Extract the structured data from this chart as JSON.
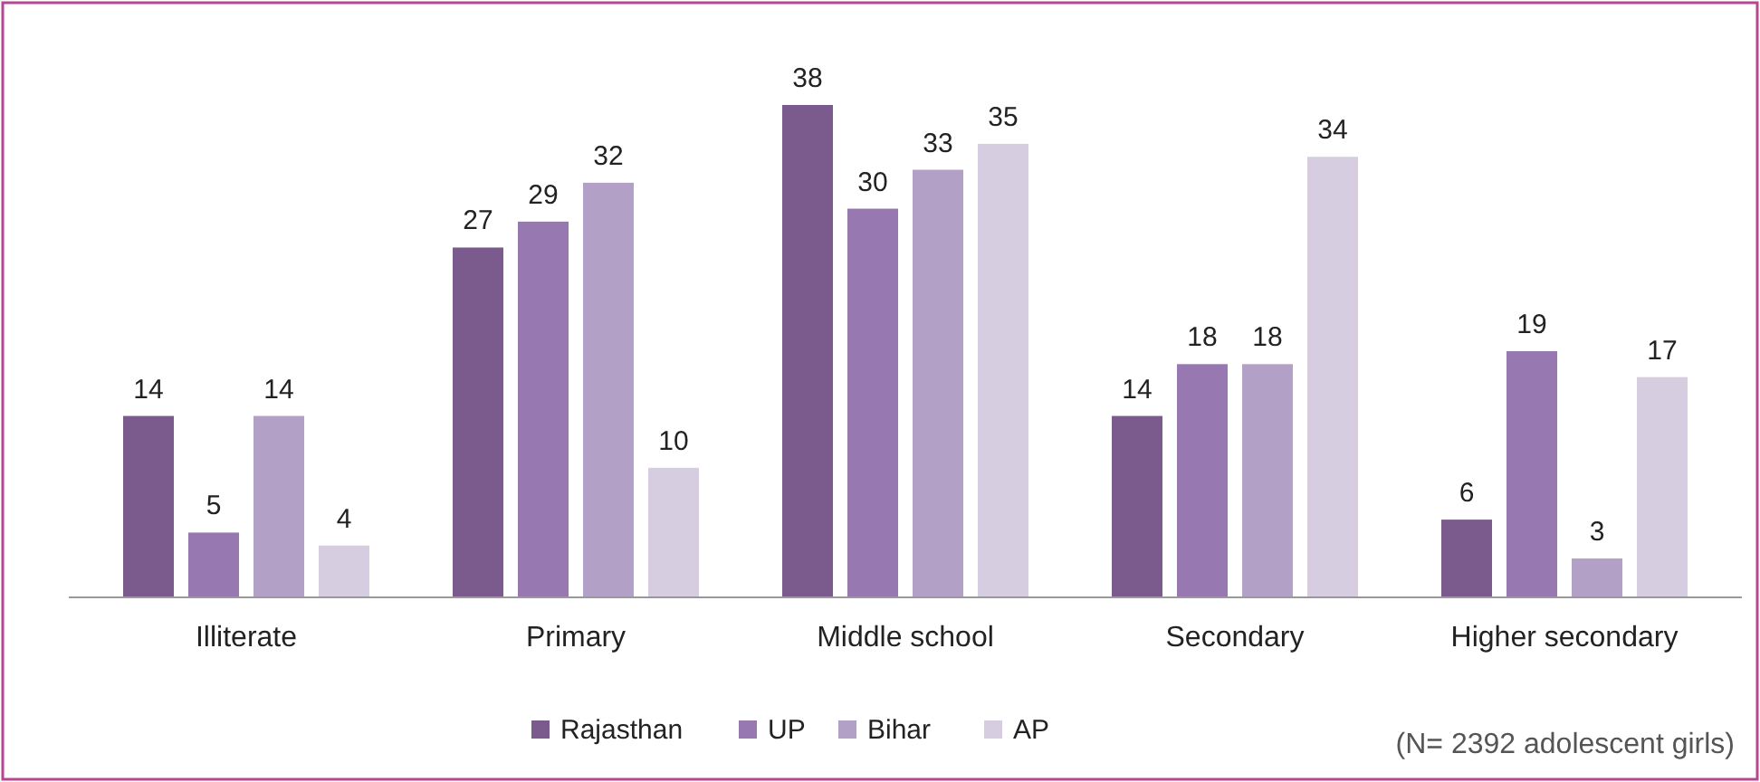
{
  "chart_data": {
    "type": "bar",
    "categories": [
      "Illiterate",
      "Primary",
      "Middle school",
      "Secondary",
      "Higher secondary"
    ],
    "series": [
      {
        "name": "Rajasthan",
        "color": "#7b5a8e",
        "values": [
          14,
          27,
          38,
          14,
          6
        ]
      },
      {
        "name": "UP",
        "color": "#9778b0",
        "values": [
          5,
          29,
          30,
          18,
          19
        ]
      },
      {
        "name": "Bihar",
        "color": "#b3a0c6",
        "values": [
          14,
          32,
          33,
          18,
          3
        ]
      },
      {
        "name": "AP",
        "color": "#d6cde1",
        "values": [
          4,
          10,
          35,
          34,
          17
        ]
      }
    ],
    "data_labels": true,
    "legend": "bottom",
    "annotations": [
      "(N= 2392 adolescent girls)"
    ]
  }
}
